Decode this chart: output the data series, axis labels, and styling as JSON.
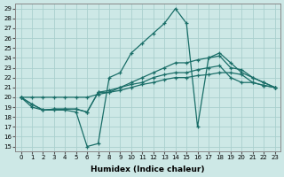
{
  "xlabel": "Humidex (Indice chaleur)",
  "ylabel": "",
  "background_color": "#cde8e6",
  "grid_color": "#aacfcd",
  "line_color": "#1a6e68",
  "xlim": [
    -0.5,
    23.5
  ],
  "ylim": [
    14.5,
    29.5
  ],
  "yticks": [
    15,
    16,
    17,
    18,
    19,
    20,
    21,
    22,
    23,
    24,
    25,
    26,
    27,
    28,
    29
  ],
  "xticks": [
    0,
    1,
    2,
    3,
    4,
    5,
    6,
    7,
    8,
    9,
    10,
    11,
    12,
    13,
    14,
    15,
    16,
    17,
    18,
    19,
    20,
    21,
    22,
    23
  ],
  "series": [
    [
      20.0,
      19.0,
      18.7,
      18.7,
      18.7,
      18.5,
      15.0,
      15.3,
      22.0,
      22.5,
      24.5,
      25.5,
      26.5,
      27.5,
      29.0,
      27.5,
      17.0,
      24.0,
      24.5,
      23.5,
      22.5,
      22.0,
      21.5,
      21.0
    ],
    [
      20.0,
      19.3,
      18.7,
      18.8,
      18.8,
      18.8,
      18.5,
      20.5,
      20.5,
      21.0,
      21.5,
      22.0,
      22.5,
      23.0,
      23.5,
      23.5,
      23.8,
      24.0,
      24.2,
      23.0,
      22.8,
      22.0,
      21.5,
      21.0
    ],
    [
      20.0,
      19.3,
      18.7,
      18.8,
      18.8,
      18.8,
      18.5,
      20.5,
      20.7,
      21.0,
      21.3,
      21.5,
      22.0,
      22.3,
      22.5,
      22.5,
      22.8,
      23.0,
      23.2,
      22.0,
      21.5,
      21.5,
      21.2,
      21.0
    ],
    [
      20.0,
      20.0,
      20.0,
      20.0,
      20.0,
      20.0,
      20.0,
      20.3,
      20.5,
      20.7,
      21.0,
      21.3,
      21.5,
      21.8,
      22.0,
      22.0,
      22.2,
      22.3,
      22.5,
      22.5,
      22.3,
      21.5,
      21.2,
      21.0
    ]
  ]
}
